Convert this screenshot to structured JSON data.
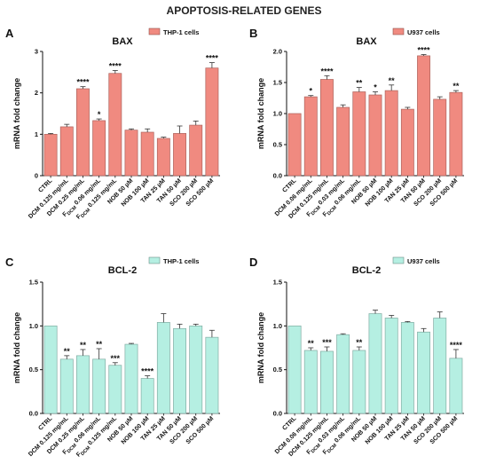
{
  "figure": {
    "title": "APOPTOSIS-RELATED GENES"
  },
  "chart_data": [
    {
      "panel": "A",
      "type": "bar",
      "title": "BAX",
      "ylabel": "mRNA fold change",
      "legend": "THP-1 cells",
      "ylim": [
        0,
        3
      ],
      "yticks": [
        "0",
        "1",
        "2",
        "3"
      ],
      "color": "#f08a80",
      "categories": [
        "CTRL",
        "DCM 0.125 mg/mL",
        "DCM 0.25 mg/mL",
        "F_DCM 0.06 mg/mL",
        "F_DCM 0.125 mg/mL",
        "NOB 50 µM",
        "NOB 100 µM",
        "TAN 25 µM",
        "TAN 50 µM",
        "SCO 200 µM",
        "SCO 500 µM"
      ],
      "values": [
        1.0,
        1.18,
        2.1,
        1.33,
        2.47,
        1.1,
        1.05,
        0.9,
        1.02,
        1.22,
        2.6
      ],
      "errors": [
        0.02,
        0.06,
        0.05,
        0.04,
        0.07,
        0.03,
        0.08,
        0.03,
        0.18,
        0.1,
        0.13
      ],
      "significance": [
        "",
        "",
        "****",
        "*",
        "****",
        "",
        "",
        "",
        "",
        "",
        "****"
      ]
    },
    {
      "panel": "B",
      "type": "bar",
      "title": "BAX",
      "ylabel": "mRNA fold change",
      "legend": "U937 cells",
      "ylim": [
        0,
        2
      ],
      "yticks": [
        "0.0",
        "0.5",
        "1.0",
        "1.5",
        "2.0"
      ],
      "color": "#f08a80",
      "categories": [
        "CTRL",
        "DCM 0.06 mg/mL",
        "DCM 0.125 mg/mL",
        "F_DCM 0.03 mg/mL",
        "F_DCM 0.06 mg/mL",
        "NOB 50 µM",
        "NOB 100 µM",
        "TAN 25 µM",
        "TAN 50 µM",
        "SCO 200 µM",
        "SCO 500 µM"
      ],
      "values": [
        1.0,
        1.27,
        1.55,
        1.1,
        1.35,
        1.3,
        1.37,
        1.07,
        1.93,
        1.23,
        1.34
      ],
      "errors": [
        0.0,
        0.02,
        0.06,
        0.04,
        0.07,
        0.05,
        0.09,
        0.03,
        0.02,
        0.04,
        0.03
      ],
      "significance": [
        "",
        "*",
        "****",
        "",
        "**",
        "*",
        "**",
        "",
        "****",
        "",
        "**"
      ]
    },
    {
      "panel": "C",
      "type": "bar",
      "title": "BCL-2",
      "ylabel": "mRNA fold change",
      "legend": "THP-1 cells",
      "ylim": [
        0,
        1.5
      ],
      "yticks": [
        "0.0",
        "0.5",
        "1.0",
        "1.5"
      ],
      "color": "#b5efe2",
      "categories": [
        "CTRL",
        "DCM 0.125 mg/mL",
        "DCM 0.25 mg/mL",
        "F_DCM 0.06 mg/mL",
        "F_DCM 0.125 mg/mL",
        "NOB 50 µM",
        "NOB 100 µM",
        "TAN 25 µM",
        "TAN 50 µM",
        "SCO 200 µM",
        "SCO 500 µM"
      ],
      "values": [
        1.0,
        0.62,
        0.66,
        0.62,
        0.55,
        0.79,
        0.4,
        1.04,
        0.97,
        1.0,
        0.87
      ],
      "errors": [
        0.0,
        0.04,
        0.07,
        0.12,
        0.03,
        0.01,
        0.03,
        0.1,
        0.05,
        0.02,
        0.08
      ],
      "significance": [
        "",
        "**",
        "**",
        "**",
        "***",
        "",
        "****",
        "",
        "",
        "",
        ""
      ]
    },
    {
      "panel": "D",
      "type": "bar",
      "title": "BCL-2",
      "ylabel": "mRNA fold change",
      "legend": "U937 cells",
      "ylim": [
        0,
        1.5
      ],
      "yticks": [
        "0.0",
        "0.5",
        "1.0",
        "1.5"
      ],
      "color": "#b5efe2",
      "categories": [
        "CTRL",
        "DCM 0.06 mg/mL",
        "DCM 0.125 mg/mL",
        "F_DCM 0.03 mg/mL",
        "F_DCM 0.06 mg/mL",
        "NOB 50 µM",
        "NOB 100 µM",
        "TAN 25 µM",
        "TAN 50 µM",
        "SCO 200 µM",
        "SCO 500 µM"
      ],
      "values": [
        1.0,
        0.72,
        0.71,
        0.9,
        0.72,
        1.14,
        1.09,
        1.04,
        0.93,
        1.09,
        0.63
      ],
      "errors": [
        0.0,
        0.03,
        0.05,
        0.01,
        0.04,
        0.04,
        0.03,
        0.01,
        0.04,
        0.07,
        0.1
      ],
      "significance": [
        "",
        "**",
        "***",
        "",
        "**",
        "",
        "",
        "",
        "",
        "",
        "****"
      ]
    }
  ]
}
